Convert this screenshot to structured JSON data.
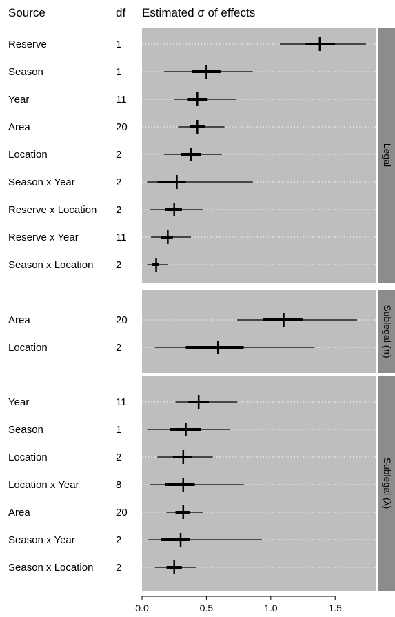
{
  "header": {
    "source": "Source",
    "df": "df",
    "estimate": "Estimated σ of effects"
  },
  "chart_data": {
    "type": "forest",
    "xlim": [
      0,
      1.82
    ],
    "x_ticks": [
      0.0,
      0.5,
      1.0,
      1.5
    ],
    "x_tick_labels": [
      "0.0",
      "0.5",
      "1.0",
      "1.5"
    ],
    "grid": "horizontal dotted white",
    "colors": {
      "panel_bg": "#bebebe",
      "strip_bg": "#8c8c8c",
      "mark": "#000000",
      "grid": "#ffffff"
    },
    "panels": [
      {
        "name": "Legal",
        "rows": [
          {
            "source": "Reserve",
            "df": "1",
            "median": 1.38,
            "lo50": 1.27,
            "hi50": 1.5,
            "lo95": 1.07,
            "hi95": 1.74
          },
          {
            "source": "Season",
            "df": "1",
            "median": 0.5,
            "lo50": 0.39,
            "hi50": 0.61,
            "lo95": 0.17,
            "hi95": 0.86
          },
          {
            "source": "Year",
            "df": "11",
            "median": 0.43,
            "lo50": 0.35,
            "hi50": 0.51,
            "lo95": 0.25,
            "hi95": 0.73
          },
          {
            "source": "Area",
            "df": "20",
            "median": 0.43,
            "lo50": 0.37,
            "hi50": 0.49,
            "lo95": 0.28,
            "hi95": 0.64
          },
          {
            "source": "Location",
            "df": "2",
            "median": 0.38,
            "lo50": 0.3,
            "hi50": 0.46,
            "lo95": 0.17,
            "hi95": 0.62
          },
          {
            "source": "Season x Year",
            "df": "2",
            "median": 0.27,
            "lo50": 0.12,
            "hi50": 0.34,
            "lo95": 0.04,
            "hi95": 0.86
          },
          {
            "source": "Reserve x Location",
            "df": "2",
            "median": 0.25,
            "lo50": 0.18,
            "hi50": 0.31,
            "lo95": 0.06,
            "hi95": 0.47
          },
          {
            "source": "Reserve x Year",
            "df": "11",
            "median": 0.2,
            "lo50": 0.15,
            "hi50": 0.24,
            "lo95": 0.07,
            "hi95": 0.38
          },
          {
            "source": "Season x Location",
            "df": "2",
            "median": 0.11,
            "lo50": 0.08,
            "hi50": 0.13,
            "lo95": 0.04,
            "hi95": 0.2
          }
        ]
      },
      {
        "name": "Sublegal (π)",
        "rows": [
          {
            "source": "Area",
            "df": "20",
            "median": 1.1,
            "lo50": 0.94,
            "hi50": 1.25,
            "lo95": 0.74,
            "hi95": 1.67
          },
          {
            "source": "Location",
            "df": "2",
            "median": 0.59,
            "lo50": 0.34,
            "hi50": 0.79,
            "lo95": 0.1,
            "hi95": 1.34
          }
        ]
      },
      {
        "name": "Sublegal (λ)",
        "rows": [
          {
            "source": "Year",
            "df": "11",
            "median": 0.44,
            "lo50": 0.36,
            "hi50": 0.52,
            "lo95": 0.26,
            "hi95": 0.74
          },
          {
            "source": "Season",
            "df": "1",
            "median": 0.34,
            "lo50": 0.22,
            "hi50": 0.46,
            "lo95": 0.04,
            "hi95": 0.68
          },
          {
            "source": "Location",
            "df": "2",
            "median": 0.32,
            "lo50": 0.24,
            "hi50": 0.39,
            "lo95": 0.12,
            "hi95": 0.55
          },
          {
            "source": "Location x Year",
            "df": "8",
            "median": 0.32,
            "lo50": 0.18,
            "hi50": 0.41,
            "lo95": 0.06,
            "hi95": 0.79
          },
          {
            "source": "Area",
            "df": "20",
            "median": 0.32,
            "lo50": 0.26,
            "hi50": 0.37,
            "lo95": 0.19,
            "hi95": 0.47
          },
          {
            "source": "Season x Year",
            "df": "2",
            "median": 0.3,
            "lo50": 0.15,
            "hi50": 0.37,
            "lo95": 0.05,
            "hi95": 0.93
          },
          {
            "source": "Season x Location",
            "df": "2",
            "median": 0.25,
            "lo50": 0.19,
            "hi50": 0.31,
            "lo95": 0.1,
            "hi95": 0.42
          }
        ]
      }
    ]
  }
}
